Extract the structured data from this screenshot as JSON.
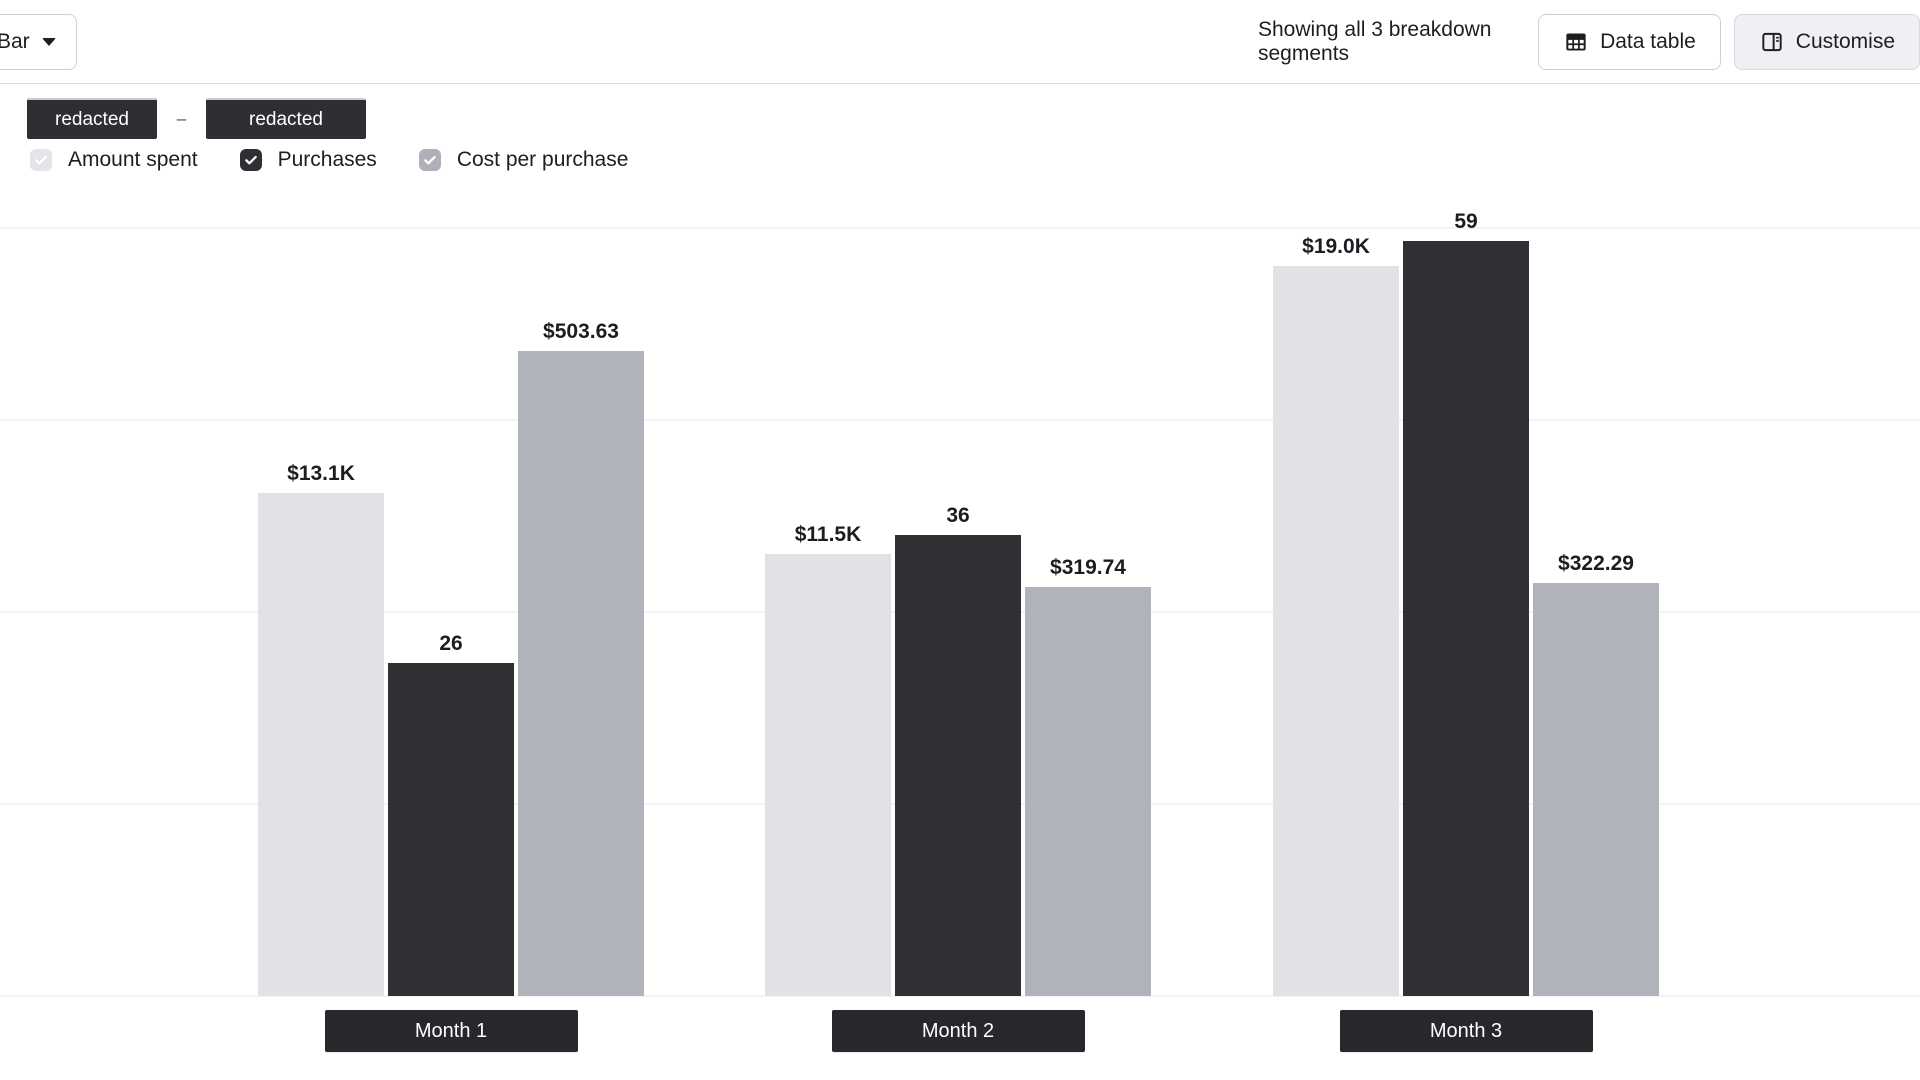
{
  "toolbar": {
    "chart_type_label": "Bar",
    "status_text": "Showing all 3 breakdown segments",
    "data_table_label": "Data table",
    "customise_label": "Customise"
  },
  "legend": {
    "chips": [
      "redacted",
      "redacted"
    ],
    "separator": "–"
  },
  "metrics": [
    {
      "label": "Amount spent",
      "checked": true,
      "color": "#e3e5e9"
    },
    {
      "label": "Purchases",
      "checked": true,
      "color": "#2e3034"
    },
    {
      "label": "Cost per purchase",
      "checked": true,
      "color": "#aeb1b8"
    }
  ],
  "chart_data": {
    "type": "bar",
    "title": "",
    "categories": [
      "Month 1",
      "Month 2",
      "Month 3"
    ],
    "series": [
      {
        "name": "Amount spent",
        "values": [
          13100,
          11500,
          19000
        ],
        "labels": [
          "$13.1K",
          "$11.5K",
          "$19.0K"
        ],
        "axis_max": 20000,
        "color": "#e1e2e6"
      },
      {
        "name": "Purchases",
        "values": [
          26,
          36,
          59
        ],
        "labels": [
          "26",
          "36",
          "59"
        ],
        "axis_max": 60,
        "color": "#2e3034"
      },
      {
        "name": "Cost per purchase",
        "values": [
          503.63,
          319.74,
          322.29
        ],
        "labels": [
          "$503.63",
          "$319.74",
          "$322.29"
        ],
        "axis_max": 600,
        "color": "#b0b3ba"
      }
    ],
    "grid": true,
    "value_labels": true,
    "legend_position": "top-left"
  }
}
